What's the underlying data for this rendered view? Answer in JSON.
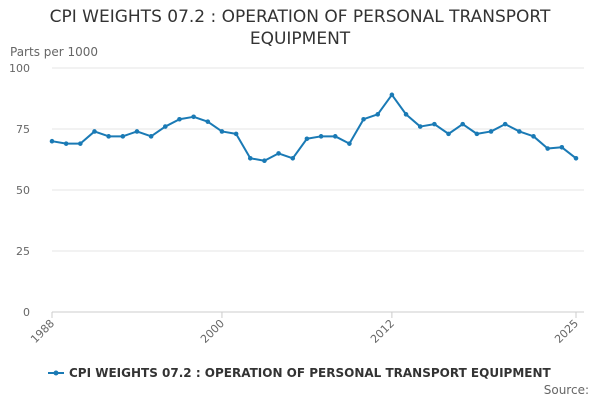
{
  "title": "CPI WEIGHTS 07.2 : OPERATION OF PERSONAL TRANSPORT EQUIPMENT",
  "source": "Source:",
  "colors": {
    "series": "#1a7ab5",
    "grid": "#e6e6e6",
    "text": "#333333"
  },
  "chart_data": {
    "type": "line",
    "title": "CPI WEIGHTS 07.2 : OPERATION OF PERSONAL TRANSPORT EQUIPMENT",
    "ylabel": "Parts per 1000",
    "xlabel": "",
    "ylim": [
      0,
      100
    ],
    "yticks": [
      0,
      25,
      50,
      75,
      100
    ],
    "xlim": [
      1988,
      2025
    ],
    "xticks": [
      1988,
      2000,
      2012,
      2025
    ],
    "grid": "horizontal",
    "legend_position": "bottom",
    "series": [
      {
        "name": "CPI WEIGHTS 07.2 : OPERATION OF PERSONAL TRANSPORT EQUIPMENT",
        "x": [
          1988,
          1989,
          1990,
          1991,
          1992,
          1993,
          1994,
          1995,
          1996,
          1997,
          1998,
          1999,
          2000,
          2001,
          2002,
          2003,
          2004,
          2005,
          2006,
          2007,
          2008,
          2009,
          2010,
          2011,
          2012,
          2013,
          2014,
          2015,
          2016,
          2017,
          2018,
          2019,
          2020,
          2021,
          2022,
          2023,
          2024,
          2025
        ],
        "values": [
          70,
          69,
          69,
          74,
          72,
          72,
          74,
          72,
          76,
          79,
          80,
          78,
          74,
          73,
          63,
          62,
          65,
          63,
          71,
          72,
          72,
          69,
          79,
          81,
          89,
          81,
          76,
          77,
          73,
          77,
          73,
          74,
          77,
          74,
          72,
          67,
          67.5,
          63
        ]
      }
    ]
  }
}
